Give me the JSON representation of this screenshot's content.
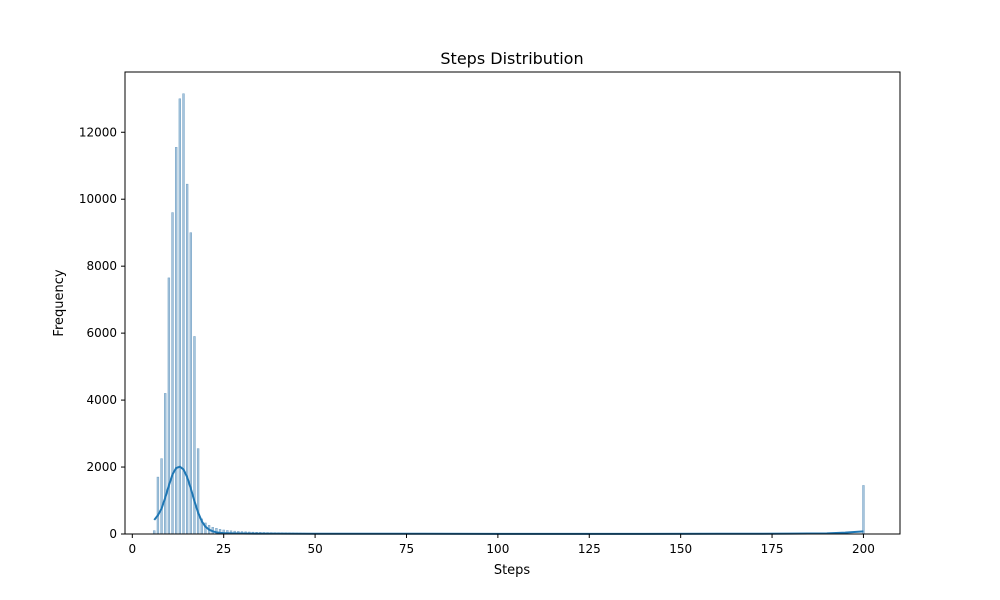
{
  "chart_data": {
    "type": "bar",
    "title": "Steps Distribution",
    "xlabel": "Steps",
    "ylabel": "Frequency",
    "xlim": [
      -2,
      210
    ],
    "ylim": [
      0,
      13800
    ],
    "xticks": [
      0,
      25,
      50,
      75,
      100,
      125,
      150,
      175,
      200
    ],
    "yticks": [
      0,
      2000,
      4000,
      6000,
      8000,
      10000,
      12000
    ],
    "grid": false,
    "legend": "none",
    "colors": {
      "bar_fill": "#a6c4dc",
      "bar_edge": "#6f9fc4",
      "kde": "#1f77b4"
    },
    "histogram": {
      "x": [
        6,
        7,
        8,
        9,
        10,
        11,
        12,
        13,
        14,
        15,
        16,
        17,
        18,
        19,
        20,
        21,
        22,
        23,
        24,
        25,
        26,
        27,
        28,
        29,
        30,
        31,
        32,
        33,
        34,
        35,
        36,
        37,
        38,
        39,
        40,
        41,
        42,
        43,
        44,
        45,
        46,
        47,
        48,
        49,
        50,
        52,
        54,
        56,
        58,
        60,
        200
      ],
      "values": [
        100,
        1700,
        2250,
        4200,
        7650,
        9600,
        11550,
        13000,
        13150,
        10450,
        9000,
        5900,
        2550,
        450,
        330,
        260,
        200,
        170,
        140,
        120,
        105,
        95,
        85,
        78,
        72,
        66,
        60,
        55,
        52,
        48,
        45,
        42,
        40,
        38,
        35,
        33,
        31,
        30,
        28,
        26,
        25,
        24,
        22,
        21,
        20,
        18,
        16,
        15,
        14,
        13,
        1450
      ]
    },
    "kde": {
      "x": [
        6,
        7,
        8,
        9,
        10,
        11,
        12,
        13,
        14,
        15,
        16,
        17,
        18,
        19,
        20,
        21,
        22,
        23,
        24,
        25,
        27,
        30,
        35,
        40,
        50,
        60,
        80,
        100,
        120,
        140,
        160,
        180,
        190,
        195,
        200
      ],
      "values": [
        420,
        560,
        760,
        1080,
        1450,
        1780,
        1970,
        2010,
        1930,
        1700,
        1360,
        980,
        640,
        380,
        220,
        130,
        80,
        50,
        35,
        25,
        18,
        14,
        12,
        10,
        8,
        7,
        6,
        5,
        5,
        5,
        6,
        10,
        20,
        40,
        80
      ]
    }
  }
}
